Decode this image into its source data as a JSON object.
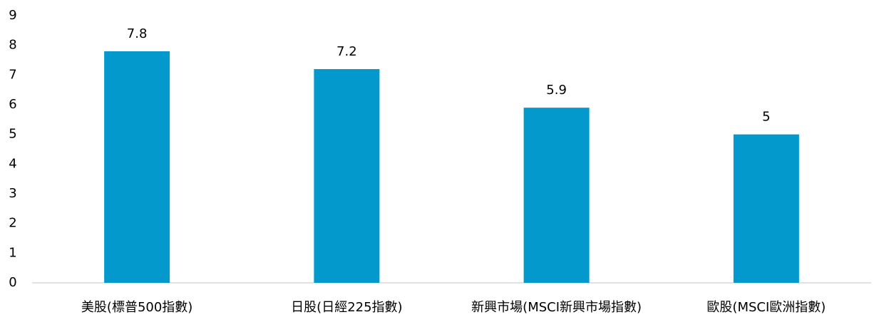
{
  "chart_data": {
    "type": "bar",
    "categories": [
      "美股(標普500指數)",
      "日股(日經225指數)",
      "新興市場(MSCI新興市場指數)",
      "歐股(MSCI歐洲指數)"
    ],
    "values": [
      7.8,
      7.2,
      5.9,
      5
    ],
    "color": "#0399cc",
    "ylim": [
      0,
      9
    ],
    "yticks": [
      0,
      1,
      2,
      3,
      4,
      5,
      6,
      7,
      8,
      9
    ],
    "grid": false
  }
}
